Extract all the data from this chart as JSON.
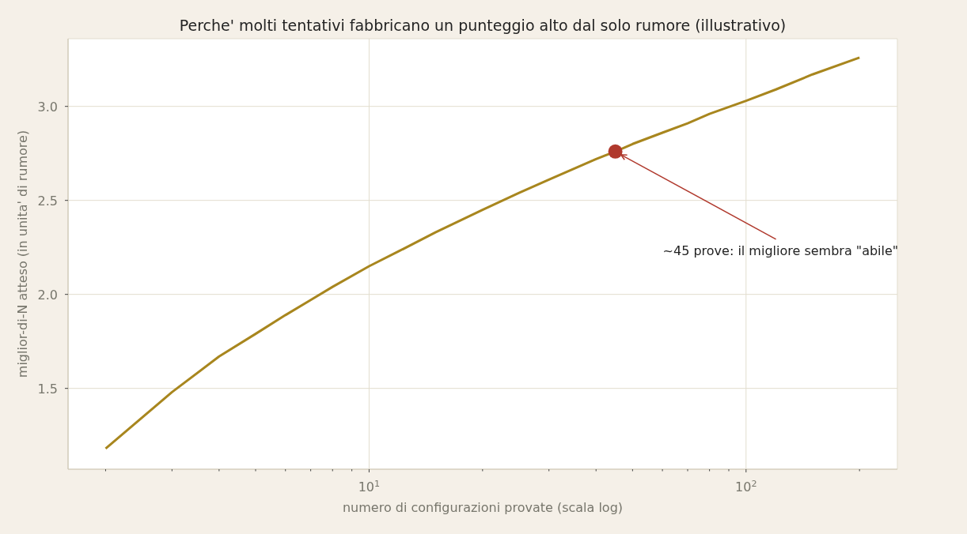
{
  "chart_data": {
    "type": "line",
    "title": "Perche' molti tentativi fabbricano un punteggio alto dal solo rumore (illustrativo)",
    "xlabel": "numero di configurazioni provate (scala log)",
    "ylabel": "miglior-di-N atteso (in unita' di rumore)",
    "log": "x",
    "grid": true,
    "xlim": [
      1.59,
      252
    ],
    "xticks": [
      {
        "value": 2,
        "label": null
      },
      {
        "value": 3,
        "label": null
      },
      {
        "value": 4,
        "label": null
      },
      {
        "value": 5,
        "label": null
      },
      {
        "value": 6,
        "label": null
      },
      {
        "value": 7,
        "label": null
      },
      {
        "value": 8,
        "label": null
      },
      {
        "value": 9,
        "label": null
      },
      {
        "value": 10,
        "label": "10$^{1}$"
      },
      {
        "value": 20,
        "label": null
      },
      {
        "value": 30,
        "label": null
      },
      {
        "value": 40,
        "label": null
      },
      {
        "value": 50,
        "label": null
      },
      {
        "value": 60,
        "label": null
      },
      {
        "value": 70,
        "label": null
      },
      {
        "value": 80,
        "label": null
      },
      {
        "value": 90,
        "label": null
      },
      {
        "value": 100,
        "label": "10$^{2}$"
      },
      {
        "value": 200,
        "label": null
      }
    ],
    "ylim": [
      1.07,
      3.36
    ],
    "yticks": [
      1.5,
      {
        "value": 2,
        "label": "2.0"
      },
      2.5,
      {
        "value": 3,
        "label": "3.0"
      }
    ],
    "series": [
      {
        "color": "#a8861e",
        "x": [
          2,
          3,
          4,
          5,
          6,
          7,
          8,
          10,
          12,
          15,
          20,
          25,
          30,
          40,
          45,
          50,
          60,
          70,
          80,
          100,
          120,
          150,
          200
        ],
        "values": [
          1.18,
          1.48,
          1.67,
          1.79,
          1.89,
          1.97,
          2.04,
          2.15,
          2.23,
          2.33,
          2.45,
          2.54,
          2.61,
          2.72,
          2.76,
          2.8,
          2.86,
          2.91,
          2.96,
          3.03,
          3.09,
          3.17,
          3.26
        ]
      },
      {
        "type": "scatter",
        "marker": "circle",
        "color": "#b0392d",
        "x": [
          45
        ],
        "values": [
          2.76
        ]
      }
    ],
    "annotations": [
      {
        "text": "~45 prove: il migliore sembra \"abile\"",
        "x": 45,
        "y": 2.76
      }
    ]
  }
}
